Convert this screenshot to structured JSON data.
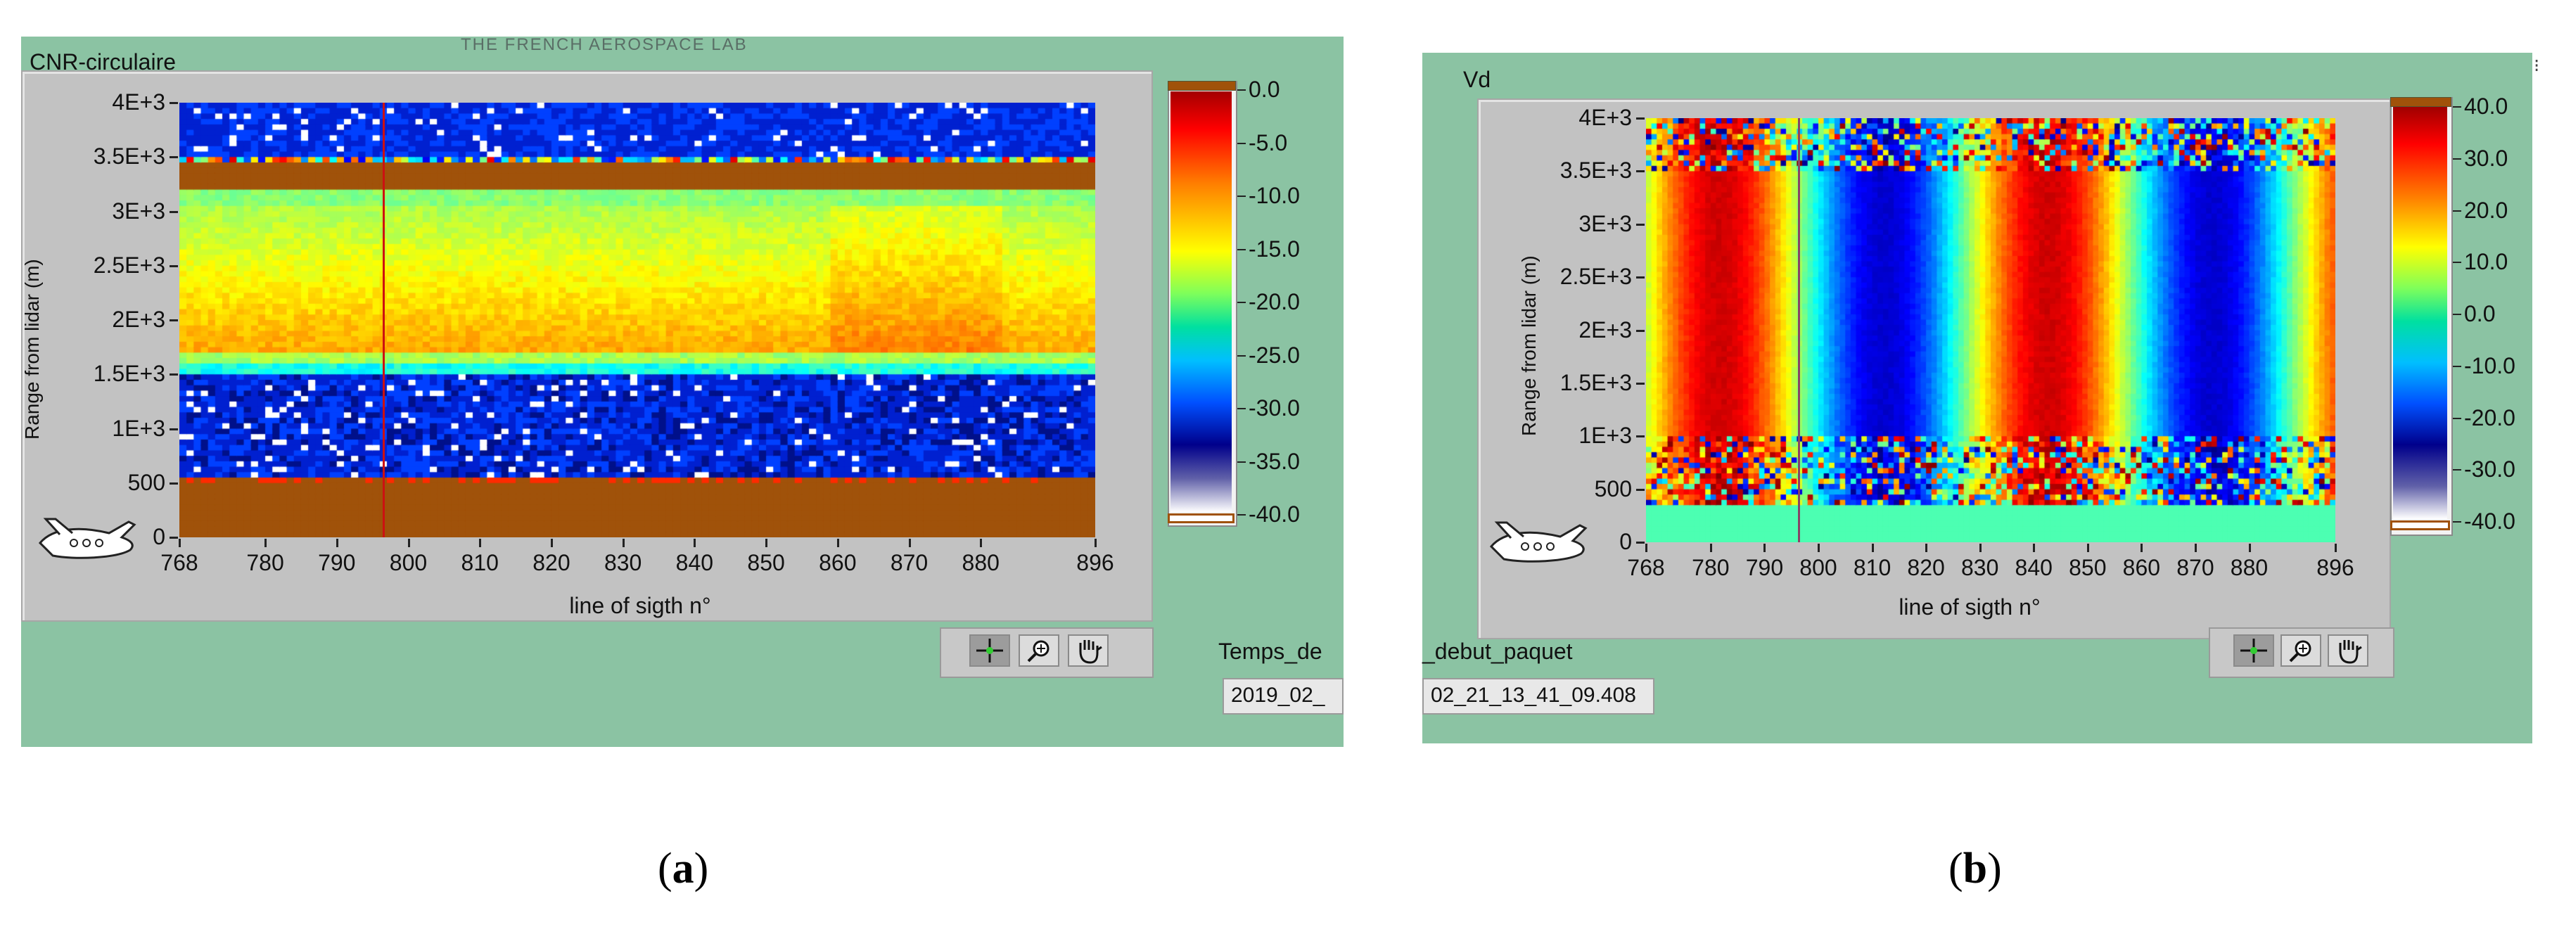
{
  "captions": {
    "a_open": "(",
    "a_letter": "a",
    "a_close": ")",
    "b_open": "(",
    "b_letter": "b",
    "b_close": ")"
  },
  "panel_a": {
    "banner": "THE FRENCH AEROSPACE LAB",
    "title": "CNR-circulaire",
    "y_axis_label": "Range from lidar (m)",
    "x_axis_label": "line of sigth n°",
    "y_ticks": [
      "4E+3",
      "3.5E+3",
      "3E+3",
      "2.5E+3",
      "2E+3",
      "1.5E+3",
      "1E+3",
      "500",
      "0"
    ],
    "x_ticks": [
      "768",
      "780",
      "790",
      "800",
      "810",
      "820",
      "830",
      "840",
      "850",
      "860",
      "870",
      "880",
      "896"
    ],
    "colorbar_ticks": [
      "0.0",
      "-5.0",
      "-10.0",
      "-15.0",
      "-20.0",
      "-25.0",
      "-30.0",
      "-35.0",
      "-40.0"
    ],
    "field_label": "Temps_de",
    "field_value": "2019_02_",
    "cursor_color": "#cc1111"
  },
  "panel_b": {
    "title": "Vd",
    "y_axis_label": "Range from lidar (m)",
    "x_axis_label": "line of sigth n°",
    "y_ticks": [
      "4E+3",
      "3.5E+3",
      "3E+3",
      "2.5E+3",
      "2E+3",
      "1.5E+3",
      "1E+3",
      "500",
      "0"
    ],
    "x_ticks": [
      "768",
      "780",
      "790",
      "800",
      "810",
      "820",
      "830",
      "840",
      "850",
      "860",
      "870",
      "880",
      "896"
    ],
    "colorbar_ticks": [
      "40.0",
      "30.0",
      "20.0",
      "10.0",
      "0.0",
      "-10.0",
      "-20.0",
      "-30.0",
      "-40.0"
    ],
    "field_label": "_debut_paquet",
    "field_value": "02_21_13_41_09.408",
    "cursor_color": "#884466"
  },
  "colors": {
    "panel_bg": "#8bc3a3",
    "frame": "#c2c2c2",
    "band_brown": "#a0520a"
  }
}
